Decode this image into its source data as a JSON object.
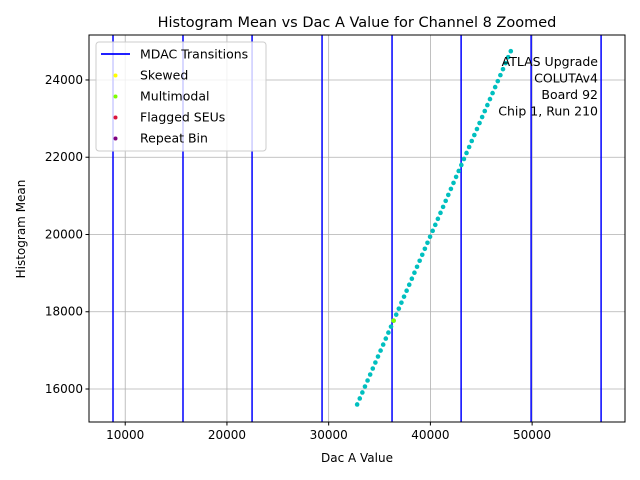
{
  "chart_data": {
    "type": "scatter",
    "title": "Histogram Mean vs Dac A Value for Channel 8 Zoomed",
    "xlabel": "Dac A Value",
    "ylabel": "Histogram Mean",
    "xlim": [
      6440,
      59130
    ],
    "ylim": [
      15146,
      25164
    ],
    "xticks": [
      10000,
      20000,
      30000,
      40000,
      50000
    ],
    "yticks": [
      16000,
      18000,
      20000,
      22000,
      24000
    ],
    "grid": true,
    "legend_placement": "top-left",
    "legend": [
      {
        "label": "MDAC Transitions",
        "kind": "line",
        "color": "#0000ff"
      },
      {
        "label": "Skewed",
        "kind": "point",
        "color": "#ffff00"
      },
      {
        "label": "Multimodal",
        "kind": "point",
        "color": "#7fff00"
      },
      {
        "label": "Flagged SEUs",
        "kind": "point",
        "color": "#dc143c"
      },
      {
        "label": "Repeat Bin",
        "kind": "point",
        "color": "#800080"
      }
    ],
    "annotation": [
      "ATLAS Upgrade",
      "COLUTAv4",
      "Board 92",
      "Chip 1, Run 210"
    ],
    "mdac_transitions": [
      8800,
      15680,
      22470,
      29350,
      36230,
      43020,
      49900,
      56780
    ],
    "mdac_color": "#0000ff",
    "point_color": "#00bfbf",
    "series": [
      {
        "x": [
          32800,
          33056,
          33312,
          33568,
          33824,
          34080,
          34336,
          34592,
          34848,
          35104,
          35360,
          35616,
          35872,
          36128,
          36384,
          36640,
          36896,
          37152,
          37408,
          37664,
          37920,
          38176,
          38432,
          38688,
          38944,
          39200,
          39456,
          39712,
          39968,
          40224,
          40480,
          40736,
          40992,
          41248,
          41504,
          41760,
          42016,
          42272,
          42528,
          42784,
          43040,
          43296,
          43552,
          43808,
          44064,
          44320,
          44576,
          44832,
          45088,
          45344,
          45600,
          45856,
          46112,
          46368,
          46624,
          46880,
          47136,
          47392,
          47648,
          47904
        ],
        "y": [
          15600,
          15755,
          15910,
          16065,
          16220,
          16375,
          16530,
          16685,
          16840,
          16995,
          17150,
          17305,
          17460,
          17615,
          17770,
          17925,
          18080,
          18235,
          18390,
          18545,
          18700,
          18855,
          19010,
          19165,
          19320,
          19475,
          19630,
          19785,
          19940,
          20095,
          20250,
          20405,
          20560,
          20715,
          20870,
          21025,
          21180,
          21335,
          21490,
          21645,
          21800,
          21955,
          22110,
          22265,
          22420,
          22575,
          22730,
          22885,
          23040,
          23195,
          23350,
          23505,
          23660,
          23815,
          23970,
          24125,
          24280,
          24435,
          24590,
          24745
        ]
      }
    ],
    "flagged_points": [
      {
        "category": "Multimodal",
        "x": 36384,
        "y": 17770
      }
    ]
  }
}
